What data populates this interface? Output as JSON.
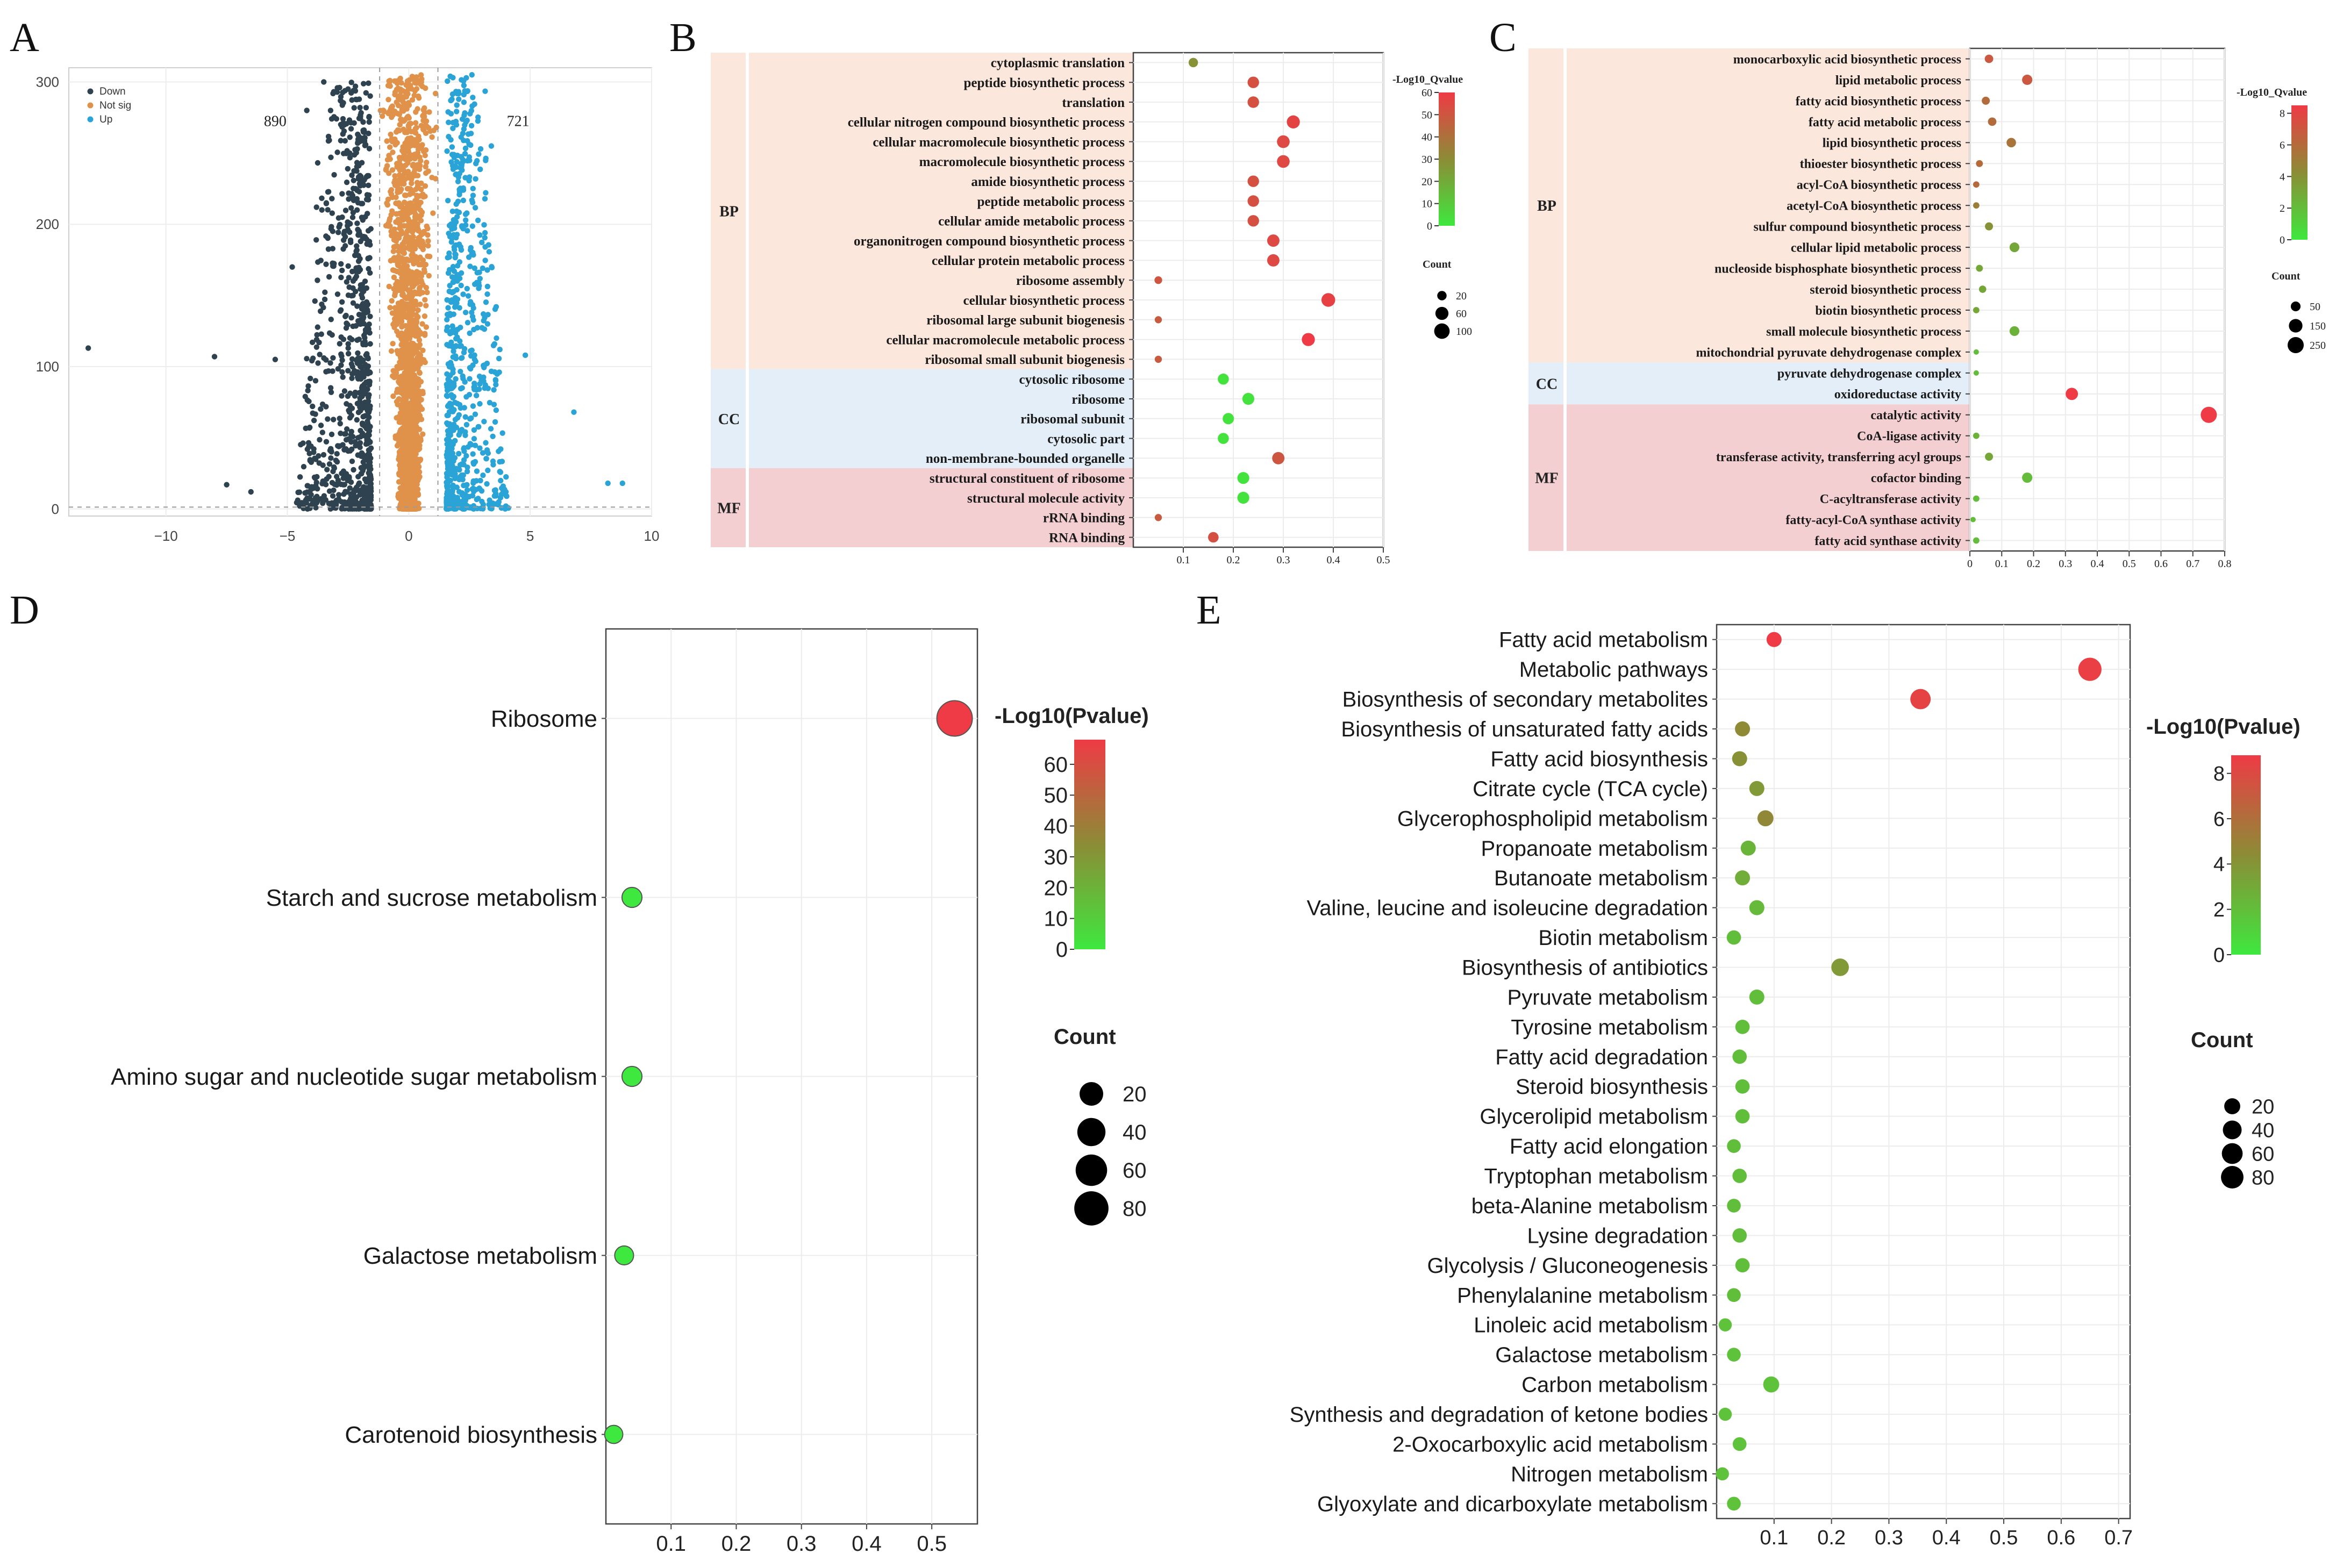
{
  "figure": {
    "panel_letters": [
      "A",
      "B",
      "C",
      "D",
      "E"
    ]
  },
  "chart_data": [
    {
      "id": "A",
      "type": "scatter",
      "title": "",
      "xlabel": "",
      "ylabel": "",
      "xlim": [
        -14,
        10
      ],
      "ylim": [
        -5,
        310
      ],
      "xticks": [
        -10,
        -5,
        0,
        5,
        10
      ],
      "yticks": [
        0,
        100,
        200,
        300
      ],
      "grid": true,
      "legend_position": "top-left",
      "legend": [
        {
          "label": "Down",
          "color": "#2e434f"
        },
        {
          "label": "Not sig",
          "color": "#e0924a"
        },
        {
          "label": "Up",
          "color": "#2aa3d6"
        }
      ],
      "annotations": [
        {
          "text": "890",
          "x": -5.5,
          "y": 272
        },
        {
          "text": "721",
          "x": 4.5,
          "y": 272
        }
      ],
      "threshold_lines": {
        "x": [
          -1.2,
          1.2
        ],
        "y": 1.3
      },
      "counts": {
        "down": 890,
        "up": 721
      },
      "sample_points": {
        "down": [
          [
            -13.2,
            113
          ],
          [
            -7.5,
            17
          ],
          [
            -8,
            107
          ],
          [
            -6.5,
            12
          ],
          [
            -5.5,
            105
          ],
          [
            -4.8,
            170
          ],
          [
            -3.8,
            212
          ],
          [
            -4.2,
            280
          ],
          [
            -3.5,
            300
          ],
          [
            -2.5,
            295
          ]
        ],
        "up": [
          [
            8.2,
            18
          ],
          [
            8.8,
            18
          ],
          [
            6.8,
            68
          ],
          [
            4.8,
            108
          ],
          [
            3.6,
            142
          ],
          [
            4.0,
            12
          ],
          [
            2.6,
            305
          ],
          [
            3.4,
            255
          ],
          [
            2.2,
            85
          ]
        ]
      }
    },
    {
      "id": "B",
      "type": "scatter",
      "title": "",
      "xlabel": "",
      "xlim": [
        0.0,
        0.5
      ],
      "xticks": [
        0.1,
        0.2,
        0.3,
        0.4,
        0.5
      ],
      "color_legend_title": "-Log10_Qvalue",
      "color_ticks": [
        0,
        10,
        20,
        30,
        40,
        50,
        60
      ],
      "color_range": [
        0,
        60
      ],
      "size_legend_title": "Count",
      "size_legend": [
        20,
        60,
        100
      ],
      "size_range": [
        5,
        160
      ],
      "groups": [
        {
          "label": "BP",
          "start": 0,
          "end": 15,
          "color": "#fbe7dc"
        },
        {
          "label": "CC",
          "start": 16,
          "end": 20,
          "color": "#e4eef8"
        },
        {
          "label": "MF",
          "start": 21,
          "end": 24,
          "color": "#f3cfd2"
        }
      ],
      "categories": [
        "cytoplasmic translation",
        "peptide biosynthetic process",
        "translation",
        "cellular nitrogen compound biosynthetic process",
        "cellular macromolecule biosynthetic process",
        "macromolecule biosynthetic process",
        "amide biosynthetic process",
        "peptide metabolic process",
        "cellular amide metabolic process",
        "organonitrogen compound biosynthetic process",
        "cellular protein metabolic process",
        "ribosome assembly",
        "cellular biosynthetic process",
        "ribosomal large subunit biogenesis",
        "cellular macromolecule metabolic process",
        "ribosomal small subunit biogenesis",
        "cytosolic ribosome",
        "ribosome",
        "ribosomal subunit",
        "cytosolic part",
        "non-membrane-bounded organelle",
        "structural constituent of ribosome",
        "structural molecule activity",
        "rRNA binding",
        "RNA binding"
      ],
      "values": [
        0.12,
        0.24,
        0.24,
        0.32,
        0.3,
        0.3,
        0.24,
        0.24,
        0.24,
        0.28,
        0.28,
        0.05,
        0.39,
        0.05,
        0.35,
        0.05,
        0.18,
        0.23,
        0.19,
        0.18,
        0.29,
        0.22,
        0.22,
        0.05,
        0.16
      ],
      "color_values": [
        28,
        52,
        52,
        57,
        55,
        55,
        52,
        52,
        52,
        55,
        55,
        50,
        58,
        48,
        60,
        48,
        2,
        2,
        2,
        2,
        50,
        2,
        2,
        48,
        52
      ],
      "sizes": [
        20,
        40,
        40,
        60,
        55,
        55,
        40,
        40,
        40,
        50,
        50,
        10,
        70,
        8,
        60,
        8,
        35,
        45,
        38,
        35,
        50,
        45,
        45,
        8,
        30
      ]
    },
    {
      "id": "C",
      "type": "scatter",
      "title": "",
      "xlabel": "",
      "xlim": [
        0.0,
        0.8
      ],
      "xticks": [
        0,
        0.1,
        0.2,
        0.3,
        0.4,
        0.5,
        0.6,
        0.7,
        0.8
      ],
      "color_legend_title": "-Log10_Qvalue",
      "color_ticks": [
        0,
        2,
        4,
        6,
        8
      ],
      "color_range": [
        0,
        8.5
      ],
      "size_legend_title": "Count",
      "size_legend": [
        50,
        150,
        250
      ],
      "size_range": [
        10,
        300
      ],
      "groups": [
        {
          "label": "BP",
          "start": 0,
          "end": 14,
          "color": "#fbe7dc"
        },
        {
          "label": "CC",
          "start": 15,
          "end": 16,
          "color": "#e4eef8"
        },
        {
          "label": "MF",
          "start": 17,
          "end": 23,
          "color": "#f3cfd2"
        }
      ],
      "categories": [
        "monocarboxylic acid biosynthetic process",
        "lipid metabolic process",
        "fatty acid biosynthetic process",
        "fatty acid metabolic process",
        "lipid biosynthetic process",
        "thioester biosynthetic process",
        "acyl-CoA biosynthetic process",
        "acetyl-CoA biosynthetic process",
        "sulfur compound biosynthetic process",
        "cellular lipid metabolic process",
        "nucleoside bisphosphate biosynthetic process",
        "steroid biosynthetic process",
        "biotin biosynthetic process",
        "small molecule biosynthetic process",
        "mitochondrial pyruvate dehydrogenase complex",
        "pyruvate dehydrogenase complex",
        "oxidoreductase activity",
        "catalytic activity",
        "CoA-ligase activity",
        "transferase activity, transferring acyl groups",
        "cofactor binding",
        "C-acyltransferase activity",
        "fatty-acyl-CoA synthase activity",
        "fatty acid synthase activity"
      ],
      "values": [
        0.06,
        0.18,
        0.05,
        0.07,
        0.13,
        0.03,
        0.02,
        0.02,
        0.06,
        0.14,
        0.03,
        0.04,
        0.02,
        0.14,
        0.02,
        0.02,
        0.32,
        0.75,
        0.02,
        0.06,
        0.18,
        0.02,
        0.01,
        0.02
      ],
      "color_values": [
        7,
        7,
        6,
        6,
        5.5,
        6,
        6,
        5,
        4,
        3,
        3,
        3,
        3,
        2.5,
        2,
        2,
        8.5,
        8.5,
        2.5,
        3,
        2,
        2,
        2,
        2
      ],
      "sizes": [
        30,
        60,
        25,
        30,
        45,
        15,
        12,
        12,
        25,
        50,
        15,
        18,
        12,
        50,
        10,
        10,
        110,
        250,
        12,
        25,
        60,
        12,
        10,
        12
      ]
    },
    {
      "id": "D",
      "type": "scatter",
      "title": "",
      "xlabel": "",
      "xlim": [
        0.0,
        0.57
      ],
      "xticks": [
        0.1,
        0.2,
        0.3,
        0.4,
        0.5
      ],
      "color_legend_title": "-Log10(Pvalue)",
      "color_ticks": [
        0,
        10,
        20,
        30,
        40,
        50,
        60
      ],
      "color_range": [
        0,
        68
      ],
      "size_legend_title": "Count",
      "size_legend": [
        20,
        40,
        60,
        80
      ],
      "size_range": [
        5,
        90
      ],
      "categories": [
        "Ribosome",
        "Starch and sucrose metabolism",
        "Amino sugar and nucleotide sugar metabolism",
        "Galactose metabolism",
        "Carotenoid biosynthesis"
      ],
      "values": [
        0.535,
        0.04,
        0.04,
        0.028,
        0.012
      ],
      "color_values": [
        68,
        0,
        0,
        0,
        0
      ],
      "sizes": [
        90,
        10,
        10,
        8,
        7
      ]
    },
    {
      "id": "E",
      "type": "scatter",
      "title": "",
      "xlabel": "",
      "xlim": [
        0.0,
        0.72
      ],
      "xticks": [
        0.1,
        0.2,
        0.3,
        0.4,
        0.5,
        0.6,
        0.7
      ],
      "color_legend_title": "-Log10(Pvalue)",
      "color_ticks": [
        0,
        2,
        4,
        6,
        8
      ],
      "color_range": [
        0,
        8.8
      ],
      "size_legend_title": "Count",
      "size_legend": [
        20,
        40,
        60,
        80
      ],
      "size_range": [
        5,
        95
      ],
      "categories": [
        "Fatty acid metabolism",
        "Metabolic pathways",
        "Biosynthesis of secondary metabolites",
        "Biosynthesis of unsaturated fatty acids",
        "Fatty acid biosynthesis",
        "Citrate cycle (TCA cycle)",
        "Glycerophospholipid metabolism",
        "Propanoate metabolism",
        "Butanoate metabolism",
        "Valine, leucine and isoleucine degradation",
        "Biotin metabolism",
        "Biosynthesis of antibiotics",
        "Pyruvate metabolism",
        "Tyrosine metabolism",
        "Fatty acid degradation",
        "Steroid biosynthesis",
        "Glycerolipid metabolism",
        "Fatty acid elongation",
        "Tryptophan metabolism",
        "beta-Alanine metabolism",
        "Lysine degradation",
        "Glycolysis / Gluconeogenesis",
        "Phenylalanine metabolism",
        "Linoleic acid metabolism",
        "Galactose metabolism",
        "Carbon metabolism",
        "Synthesis and degradation of ketone bodies",
        "2-Oxocarboxylic acid metabolism",
        "Nitrogen metabolism",
        "Glyoxylate and dicarboxylate metabolism"
      ],
      "values": [
        0.1,
        0.65,
        0.355,
        0.045,
        0.04,
        0.07,
        0.085,
        0.055,
        0.045,
        0.07,
        0.03,
        0.215,
        0.07,
        0.045,
        0.04,
        0.045,
        0.045,
        0.03,
        0.04,
        0.03,
        0.04,
        0.045,
        0.03,
        0.015,
        0.03,
        0.095,
        0.015,
        0.04,
        0.01,
        0.03
      ],
      "color_values": [
        8.8,
        8.6,
        8.4,
        4.5,
        4.2,
        3.8,
        4.6,
        2.5,
        2.8,
        2.2,
        2.0,
        3.8,
        2.0,
        2.0,
        2.0,
        2.0,
        2.0,
        2.0,
        2.0,
        2.0,
        2.0,
        2.0,
        2.0,
        1.8,
        1.8,
        1.8,
        1.8,
        1.8,
        1.8,
        1.8
      ],
      "sizes": [
        15,
        90,
        55,
        15,
        15,
        15,
        20,
        15,
        15,
        15,
        12,
        30,
        15,
        12,
        12,
        12,
        12,
        10,
        12,
        10,
        12,
        12,
        10,
        8,
        10,
        20,
        8,
        10,
        8,
        10
      ]
    }
  ]
}
